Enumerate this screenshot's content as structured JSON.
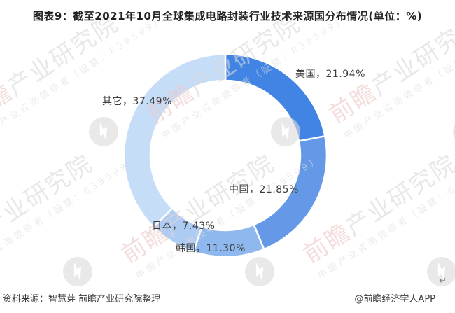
{
  "header": {
    "title": "图表9：截至2021年10月全球集成电路封装行业技术来源国分布情况(单位：%)"
  },
  "chart_data": {
    "type": "pie",
    "subtype": "donut",
    "title": "图表9：截至2021年10月全球集成电路封装行业技术来源国分布情况",
    "unit": "%",
    "start_angle_deg": 0,
    "direction": "clockwise",
    "inner_radius_ratio": 0.74,
    "categories": [
      "美国",
      "中国",
      "韩国",
      "日本",
      "其它"
    ],
    "values": [
      21.94,
      21.85,
      11.3,
      7.43,
      37.49
    ],
    "segments": [
      {
        "name": "美国",
        "value": 21.94,
        "label": "美国，21.94%",
        "color": "#4184E4"
      },
      {
        "name": "中国",
        "value": 21.85,
        "label": "中国，21.85%",
        "color": "#6599E7"
      },
      {
        "name": "韩国",
        "value": 11.3,
        "label": "韩国，11.30%",
        "color": "#8FB8EE"
      },
      {
        "name": "日本",
        "value": 7.43,
        "label": "日本，7.43%",
        "color": "#AECBF3"
      },
      {
        "name": "其它",
        "value": 37.49,
        "label": "其它，37.49%",
        "color": "#C6DDF7"
      }
    ],
    "legend": "none",
    "labels_position": "outside"
  },
  "watermark": {
    "brand": "前瞻",
    "brand_rest": "产业研究院",
    "subtext": "中国产业咨询领导者（股票：839599）",
    "logo_icon": "qianzhan-bolt-logo"
  },
  "footer": {
    "source": "资料来源：智慧芽 前瞻产业研究院整理",
    "credit": "@前瞻经济学人APP",
    "return_mark": "↵"
  }
}
